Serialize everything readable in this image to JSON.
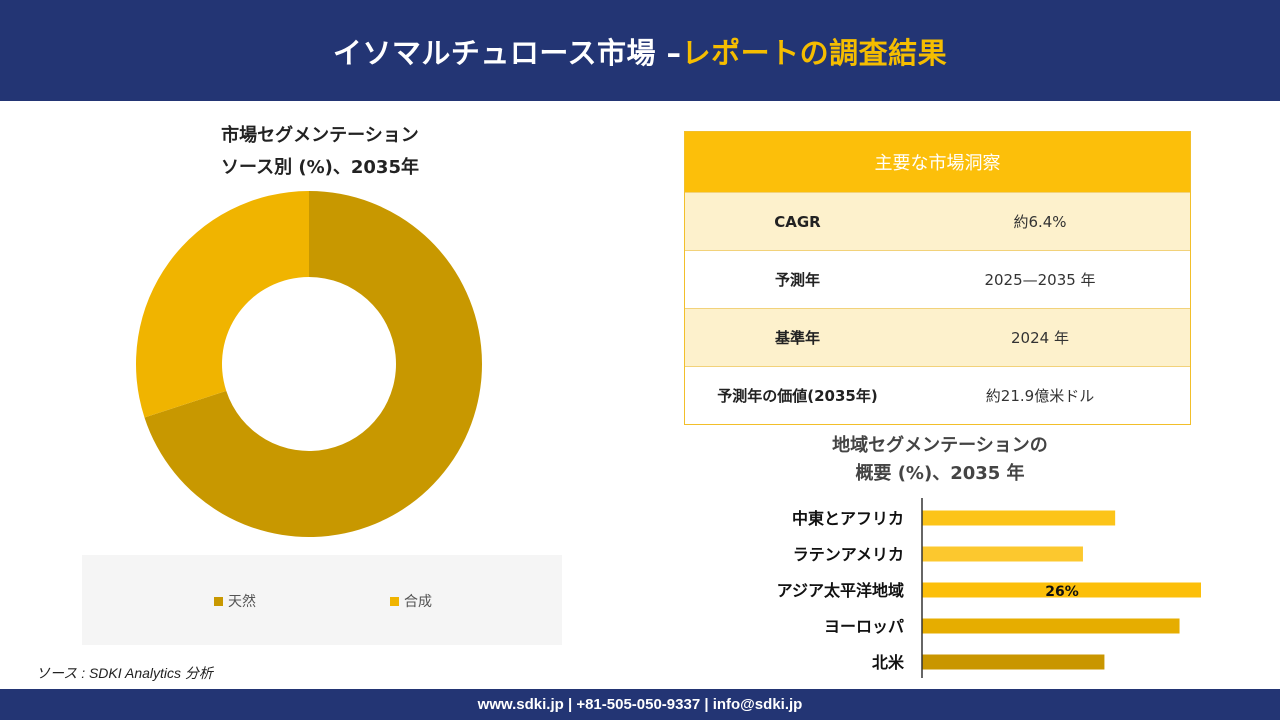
{
  "header": {
    "title_main": "イソマルチュロース市場 –",
    "title_accent": "レポートの調査結果"
  },
  "donut": {
    "title_line1": "市場セグメンテーション",
    "title_line2": "ソース別 (%)、2035年",
    "legend": [
      {
        "label": "天然",
        "color": "#c89800"
      },
      {
        "label": "合成",
        "color": "#f0b400"
      }
    ]
  },
  "kpi": {
    "heading": "主要な市場洞察",
    "rows": [
      {
        "label": "CAGR",
        "value": "約6.4%"
      },
      {
        "label": "予測年",
        "value": "2025—2035 年"
      },
      {
        "label": "基準年",
        "value": "2024 年"
      },
      {
        "label": "予測年の価値(2035年)",
        "value": "約21.9億米ドル"
      }
    ]
  },
  "bar": {
    "title_line1": "地域セグメンテーションの",
    "title_line2": "概要 (%)、2035 年"
  },
  "source": "ソース : SDKI Analytics 分析",
  "footer": "www.sdki.jp | +81-505-050-9337 | info@sdki.jp",
  "chart_data": [
    {
      "type": "pie",
      "title": "市場セグメンテーション ソース別 (%)、2035年",
      "categories": [
        "天然",
        "合成"
      ],
      "values": [
        70,
        30
      ],
      "colors": [
        "#c89800",
        "#f0b400"
      ],
      "donut": true,
      "legend": "bottom"
    },
    {
      "type": "bar",
      "orientation": "horizontal",
      "title": "地域セグメンテーションの 概要 (%)、2035 年",
      "categories": [
        "中東とアフリカ",
        "ラテンアメリカ",
        "アジア太平洋地域",
        "ヨーロッパ",
        "北米"
      ],
      "values": [
        18,
        15,
        26,
        24,
        17
      ],
      "colors": [
        "#fcc419",
        "#fcc82e",
        "#fcbf0a",
        "#e6ad00",
        "#c99600"
      ],
      "data_labels": [
        "",
        "",
        "26%",
        "",
        ""
      ],
      "xlim": [
        0,
        26
      ]
    }
  ]
}
